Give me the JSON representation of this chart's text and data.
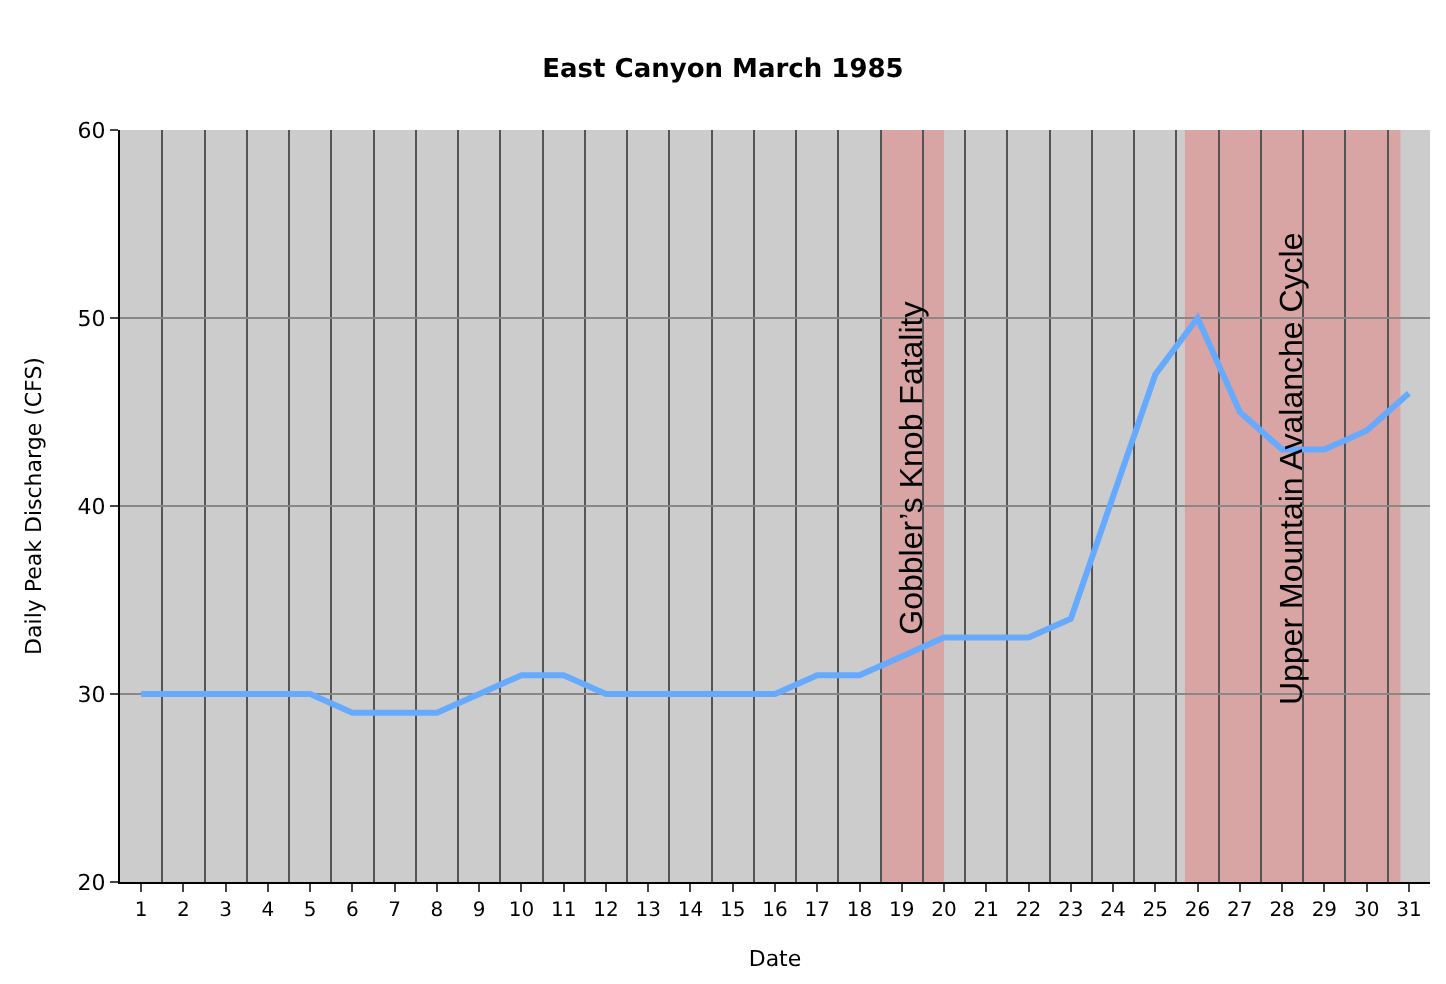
{
  "chart_data": {
    "type": "line",
    "title": "East Canyon March 1985",
    "xlabel": "Date",
    "ylabel": "Daily Peak Discharge (CFS)",
    "x": [
      1,
      2,
      3,
      4,
      5,
      6,
      7,
      8,
      9,
      10,
      11,
      12,
      13,
      14,
      15,
      16,
      17,
      18,
      19,
      20,
      21,
      22,
      23,
      24,
      25,
      26,
      27,
      28,
      29,
      30,
      31
    ],
    "series": [
      {
        "color": "#66aaff",
        "values": [
          30,
          30,
          30,
          30,
          30,
          29,
          29,
          29,
          30,
          31,
          31,
          30,
          30,
          30,
          30,
          30,
          31,
          31,
          32,
          33,
          33,
          33,
          34,
          40.5,
          47,
          50,
          45,
          43,
          43,
          44,
          46
        ]
      }
    ],
    "xlim": [
      0.5,
      31.5
    ],
    "xticks": [
      1,
      2,
      3,
      4,
      5,
      6,
      7,
      8,
      9,
      10,
      11,
      12,
      13,
      14,
      15,
      16,
      17,
      18,
      19,
      20,
      21,
      22,
      23,
      24,
      25,
      26,
      27,
      28,
      29,
      30,
      31
    ],
    "ylim": [
      20,
      60
    ],
    "yticks": [
      20,
      30,
      40,
      50,
      60
    ],
    "grid": true,
    "marker": "none",
    "line_style": "solid",
    "bands": [
      {
        "axis": "x",
        "from": 18.5,
        "to": 20,
        "label": "Gobbler’s Knob Fatality",
        "color": "#e08888"
      },
      {
        "axis": "x",
        "from": 25.7,
        "to": 30.8,
        "label": "Upper Mountain Avalanche Cycle",
        "color": "#e08888"
      }
    ]
  }
}
